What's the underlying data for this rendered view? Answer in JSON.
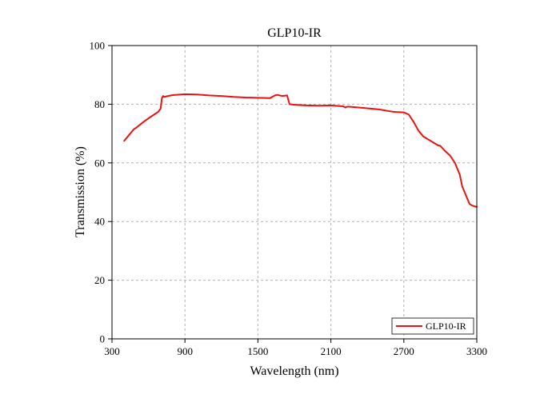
{
  "chart_data": {
    "type": "line",
    "title": "GLP10-IR",
    "xlabel": "Wavelength (nm)",
    "ylabel": "Transmission (%)",
    "xlim": [
      300,
      3300
    ],
    "ylim": [
      0,
      100
    ],
    "xticks": [
      300,
      900,
      1500,
      2100,
      2700,
      3300
    ],
    "yticks": [
      0,
      20,
      40,
      60,
      80,
      100
    ],
    "grid": true,
    "legend": {
      "position": "bottom-right"
    },
    "series": [
      {
        "name": "GLP10-IR",
        "color": "#ee1111",
        "x": [
          400,
          420,
          440,
          460,
          480,
          500,
          530,
          560,
          600,
          640,
          680,
          700,
          710,
          720,
          730,
          760,
          800,
          900,
          1000,
          1100,
          1200,
          1300,
          1400,
          1500,
          1600,
          1640,
          1660,
          1700,
          1740,
          1760,
          1780,
          1800,
          1900,
          2000,
          2100,
          2200,
          2220,
          2240,
          2300,
          2400,
          2500,
          2600,
          2650,
          2700,
          2740,
          2780,
          2820,
          2860,
          2900,
          2940,
          2980,
          3000,
          3040,
          3080,
          3120,
          3160,
          3180,
          3200,
          3220,
          3240,
          3260,
          3280,
          3300
        ],
        "y": [
          67.5,
          68.5,
          69.5,
          70.5,
          71.5,
          72,
          73,
          74,
          75.2,
          76.3,
          77.4,
          78.5,
          82,
          82.8,
          82.5,
          82.8,
          83.1,
          83.4,
          83.3,
          83.0,
          82.8,
          82.5,
          82.3,
          82.2,
          82.1,
          83.0,
          83.2,
          82.8,
          83.0,
          80.0,
          79.9,
          79.8,
          79.6,
          79.5,
          79.6,
          79.3,
          78.9,
          79.2,
          79.0,
          78.6,
          78.2,
          77.5,
          77.3,
          77.2,
          76.5,
          74,
          71,
          69,
          68,
          67,
          66,
          65.8,
          64,
          62.5,
          60,
          56,
          52,
          50,
          48,
          46,
          45.5,
          45.2,
          45.0
        ]
      }
    ]
  }
}
